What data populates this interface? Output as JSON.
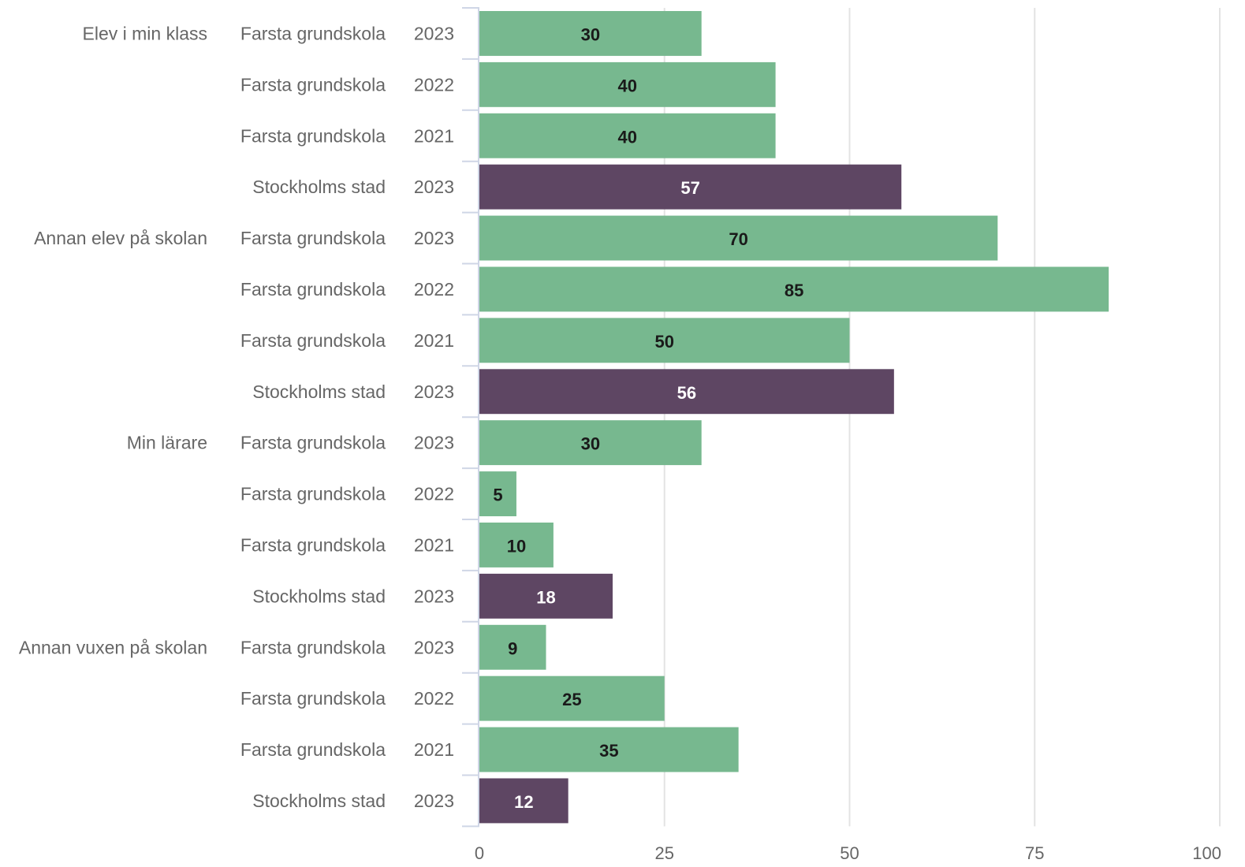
{
  "chart_data": {
    "type": "bar",
    "orientation": "horizontal",
    "xlim": [
      0,
      100
    ],
    "x_ticks": [
      0,
      25,
      50,
      75,
      100
    ],
    "grid": true,
    "colors": {
      "Farsta grundskola": "#77b88f",
      "Stockholms stad": "#5e4663"
    },
    "value_label_colors": {
      "Farsta grundskola": "#1a1a1a",
      "Stockholms stad": "#ffffff"
    },
    "groups": [
      {
        "label": "Elev i min klass",
        "rows": [
          {
            "unit": "Farsta grundskola",
            "year": "2023",
            "value": 30
          },
          {
            "unit": "Farsta grundskola",
            "year": "2022",
            "value": 40
          },
          {
            "unit": "Farsta grundskola",
            "year": "2021",
            "value": 40
          },
          {
            "unit": "Stockholms stad",
            "year": "2023",
            "value": 57
          }
        ]
      },
      {
        "label": "Annan elev på skolan",
        "rows": [
          {
            "unit": "Farsta grundskola",
            "year": "2023",
            "value": 70
          },
          {
            "unit": "Farsta grundskola",
            "year": "2022",
            "value": 85
          },
          {
            "unit": "Farsta grundskola",
            "year": "2021",
            "value": 50
          },
          {
            "unit": "Stockholms stad",
            "year": "2023",
            "value": 56
          }
        ]
      },
      {
        "label": "Min lärare",
        "rows": [
          {
            "unit": "Farsta grundskola",
            "year": "2023",
            "value": 30
          },
          {
            "unit": "Farsta grundskola",
            "year": "2022",
            "value": 5
          },
          {
            "unit": "Farsta grundskola",
            "year": "2021",
            "value": 10
          },
          {
            "unit": "Stockholms stad",
            "year": "2023",
            "value": 18
          }
        ]
      },
      {
        "label": "Annan vuxen på skolan",
        "rows": [
          {
            "unit": "Farsta grundskola",
            "year": "2023",
            "value": 9
          },
          {
            "unit": "Farsta grundskola",
            "year": "2022",
            "value": 25
          },
          {
            "unit": "Farsta grundskola",
            "year": "2021",
            "value": 35
          },
          {
            "unit": "Stockholms stad",
            "year": "2023",
            "value": 12
          }
        ]
      }
    ]
  }
}
